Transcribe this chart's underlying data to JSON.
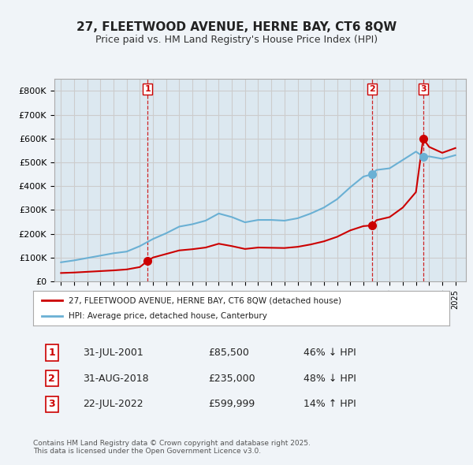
{
  "title": "27, FLEETWOOD AVENUE, HERNE BAY, CT6 8QW",
  "subtitle": "Price paid vs. HM Land Registry's House Price Index (HPI)",
  "legend_line1": "27, FLEETWOOD AVENUE, HERNE BAY, CT6 8QW (detached house)",
  "legend_line2": "HPI: Average price, detached house, Canterbury",
  "footnote": "Contains HM Land Registry data © Crown copyright and database right 2025.\nThis data is licensed under the Open Government Licence v3.0.",
  "table": [
    {
      "num": "1",
      "date": "31-JUL-2001",
      "price": "£85,500",
      "hpi": "46% ↓ HPI"
    },
    {
      "num": "2",
      "date": "31-AUG-2018",
      "price": "£235,000",
      "hpi": "48% ↓ HPI"
    },
    {
      "num": "3",
      "date": "22-JUL-2022",
      "price": "£599,999",
      "hpi": "14% ↑ HPI"
    }
  ],
  "ylabel_ticks": [
    "£0",
    "£100K",
    "£200K",
    "£300K",
    "£400K",
    "£500K",
    "£600K",
    "£700K",
    "£800K"
  ],
  "ytick_vals": [
    0,
    100000,
    200000,
    300000,
    400000,
    500000,
    600000,
    700000,
    800000
  ],
  "ylim": [
    0,
    850000
  ],
  "sale_color": "#cc0000",
  "hpi_color": "#6ab0d4",
  "vline_color": "#cc0000",
  "bg_color": "#f0f4f8",
  "grid_color": "#cccccc",
  "plot_bg": "#dce8f0",
  "marker_color": "#cc0000",
  "marker_hpi_color": "#6ab0d4"
}
